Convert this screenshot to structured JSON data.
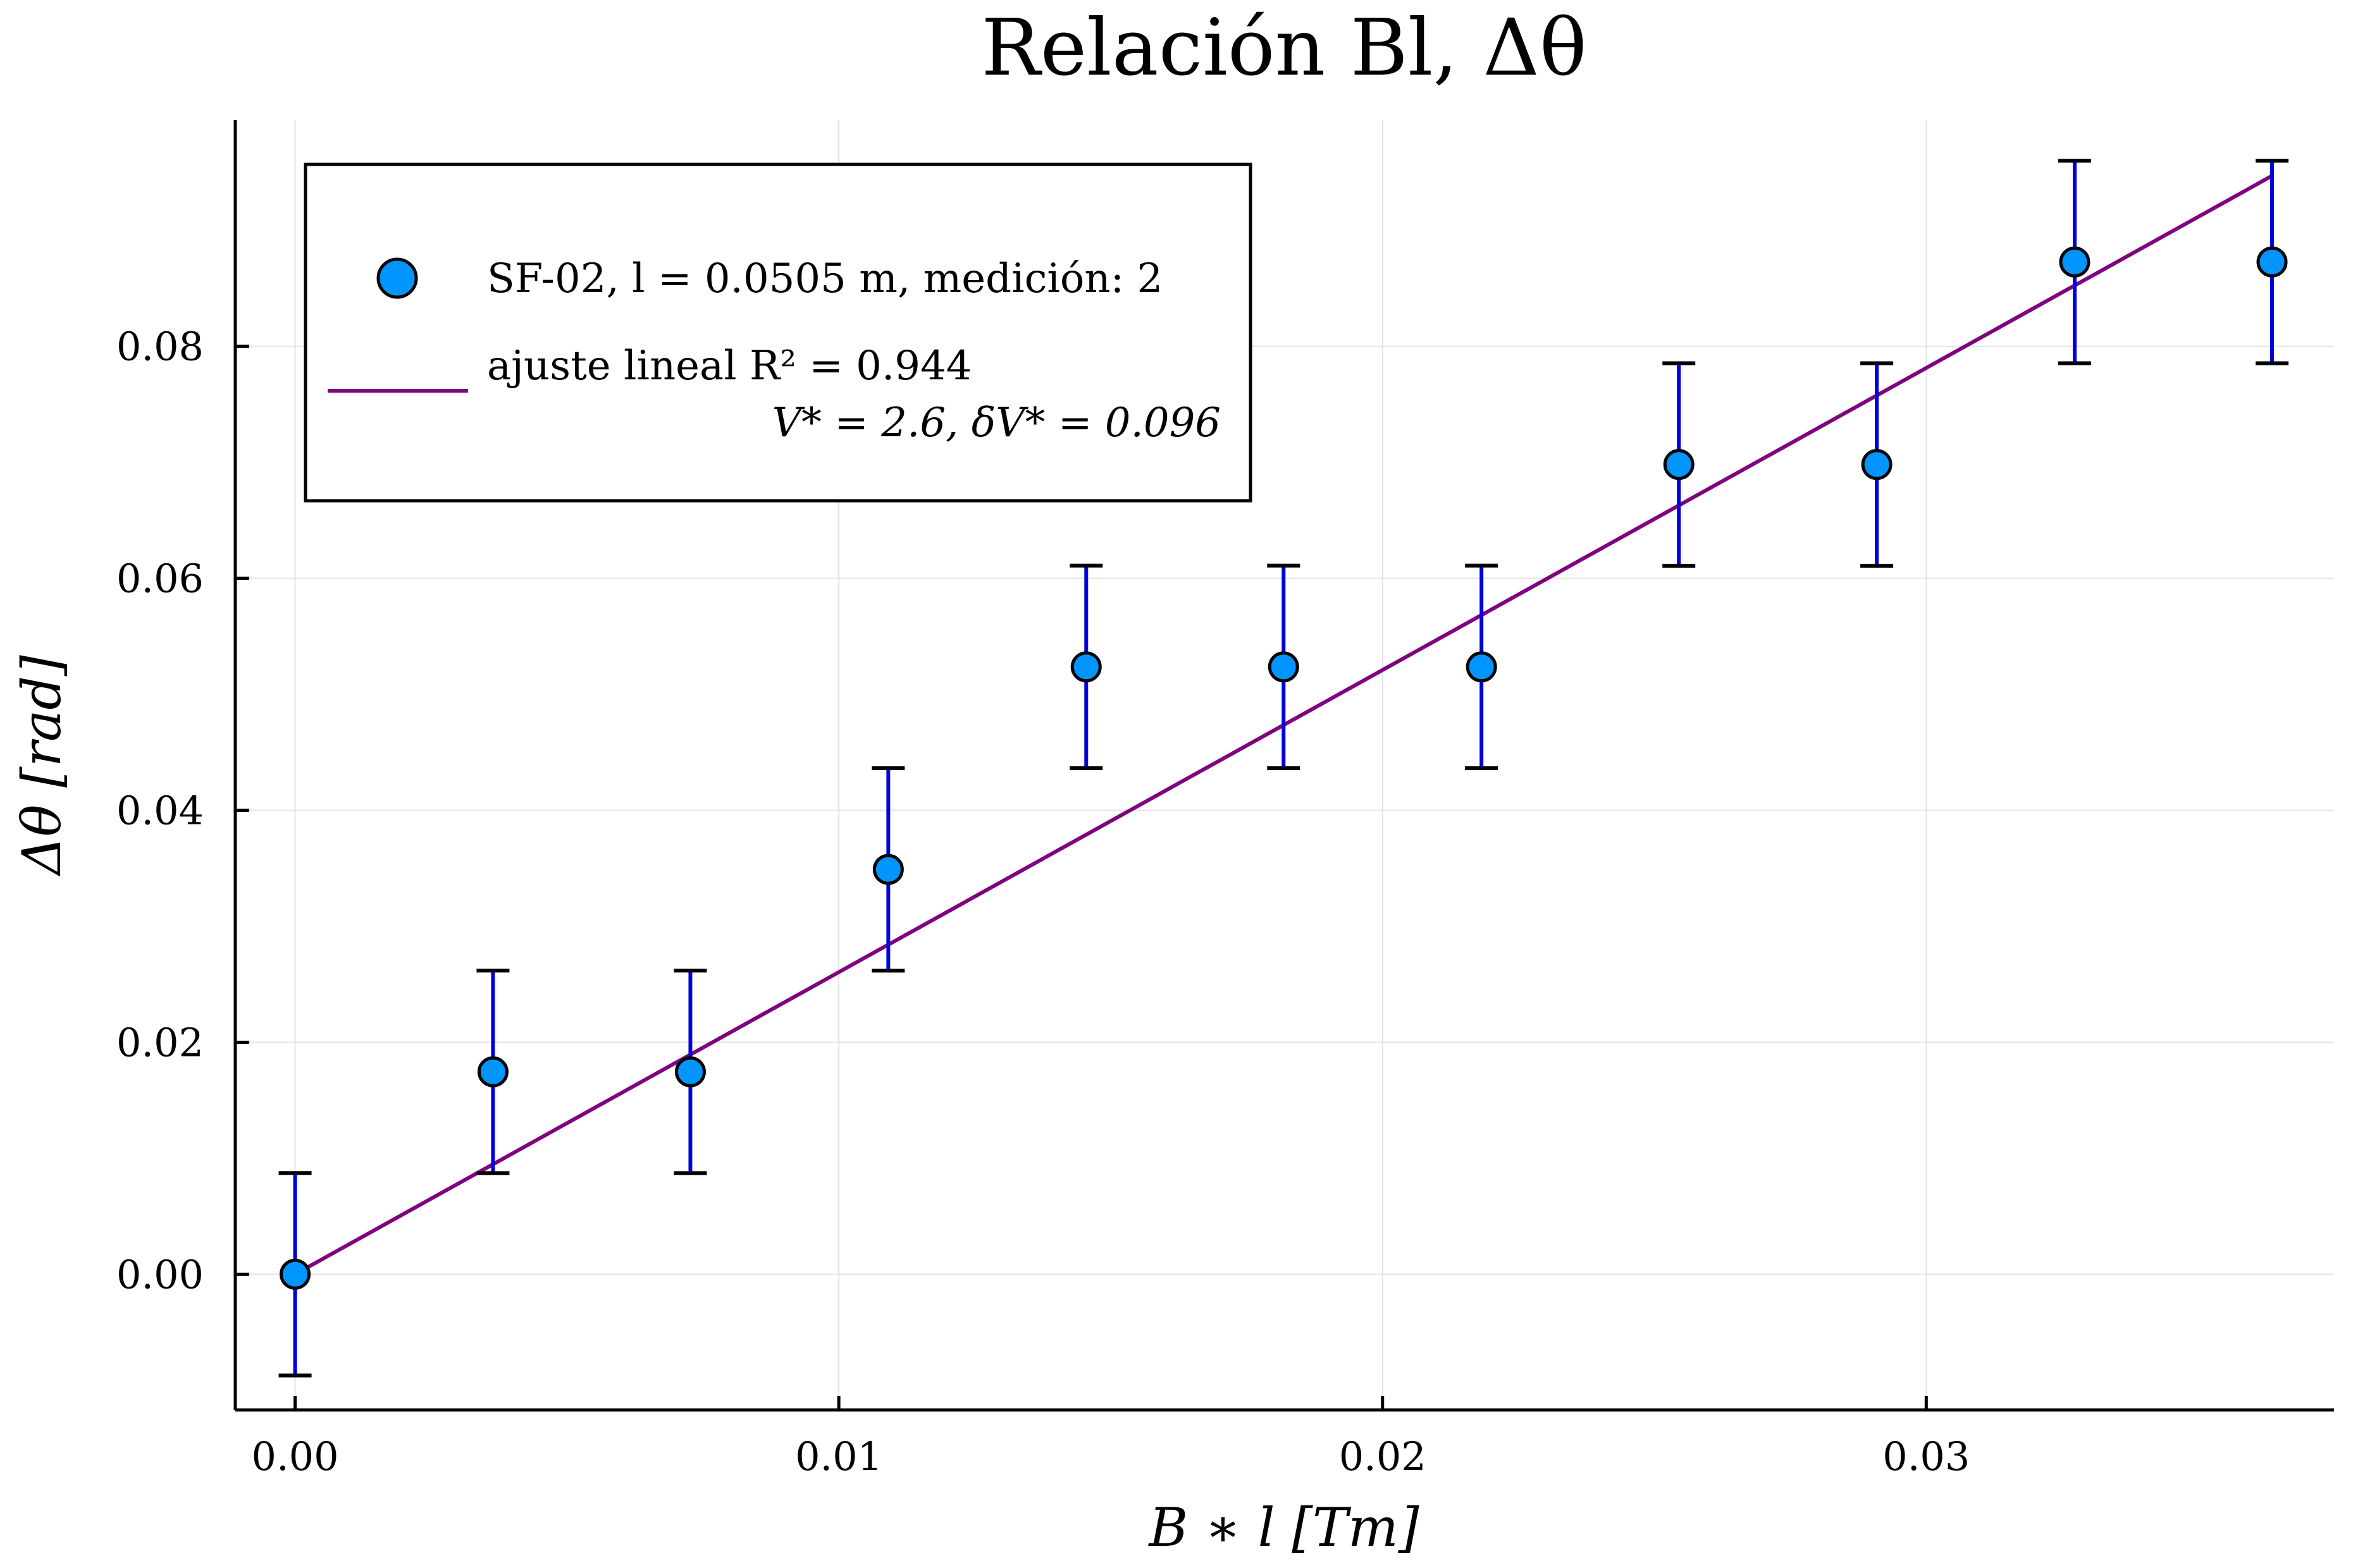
{
  "chart_data": {
    "type": "scatter",
    "title": "Relación Bl, Δθ",
    "xlabel": "B ∗ l [Tm]",
    "ylabel": "Δθ [rad]",
    "xlim": [
      -0.0011,
      0.0375
    ],
    "ylim": [
      -0.0117,
      0.0995
    ],
    "xticks": [
      0.0,
      0.01,
      0.02,
      0.03
    ],
    "xtick_labels": [
      "0.00",
      "0.01",
      "0.02",
      "0.03"
    ],
    "yticks": [
      0.0,
      0.02,
      0.04,
      0.06,
      0.08
    ],
    "ytick_labels": [
      "0.00",
      "0.02",
      "0.04",
      "0.06",
      "0.08"
    ],
    "grid": true,
    "legend_position": "top-left",
    "series": [
      {
        "name": "SF-02, l = 0.0505 m, medición: 2",
        "kind": "scatter",
        "color": "#0095ff",
        "errorbar_color": "#0000dd",
        "x": [
          0.0,
          0.00364,
          0.00727,
          0.01091,
          0.01455,
          0.01818,
          0.02182,
          0.02545,
          0.02909,
          0.03273,
          0.03636
        ],
        "y": [
          0.0,
          0.01745,
          0.01745,
          0.0349,
          0.05236,
          0.05236,
          0.05236,
          0.06981,
          0.06981,
          0.08727,
          0.08727
        ],
        "yerr": [
          0.00873,
          0.00873,
          0.00873,
          0.00873,
          0.00873,
          0.00873,
          0.00873,
          0.00873,
          0.00873,
          0.00873,
          0.00873
        ]
      },
      {
        "name": "ajuste lineal R² = 0.944",
        "subtitle": "V* = 2.6, δV* = 0.096",
        "kind": "line",
        "color": "#800080",
        "x": [
          0.0,
          0.03636
        ],
        "y": [
          0.0,
          0.0947
        ]
      }
    ]
  }
}
